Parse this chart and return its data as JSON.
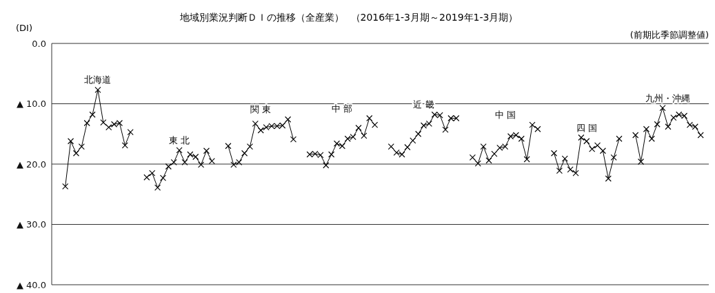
{
  "chart_data": {
    "type": "line",
    "title": "地域別業況判断ＤＩの推移（全産業）",
    "subtitle": "（2016年1-3月期～2019年1-3月期）",
    "ylabel": "(DI)",
    "annotations": [
      "(前期比季節調整値)"
    ],
    "categories": [
      null,
      null,
      null,
      null,
      null,
      null,
      null,
      null,
      null,
      null,
      null,
      null,
      null,
      null,
      null,
      null,
      null,
      null,
      null,
      null,
      null,
      null,
      null,
      null,
      null,
      null,
      null,
      null,
      null,
      null,
      null,
      null,
      null,
      null,
      null,
      null,
      null,
      null,
      null,
      null,
      null,
      null,
      null,
      null,
      null,
      null,
      null,
      null,
      null,
      null,
      null,
      null,
      null,
      null,
      null,
      null,
      null,
      null,
      null,
      null,
      null,
      null,
      null,
      null,
      null,
      null,
      null,
      null,
      null,
      null,
      null,
      null,
      null,
      null,
      null,
      null,
      null,
      null,
      null,
      null,
      null,
      null,
      null,
      null,
      null,
      null,
      null,
      null,
      null,
      null,
      null,
      null,
      null,
      null,
      null,
      null,
      null,
      null,
      null,
      null,
      null,
      null,
      null,
      null,
      null,
      null,
      null,
      null,
      null,
      null,
      null,
      null,
      null,
      null,
      null,
      null,
      null,
      null,
      null,
      null,
      null
    ],
    "series": [
      {
        "name": "北海道",
        "color": "#000000",
        "values": [
          null,
          null,
          -23.7,
          -16.2,
          -18.2,
          -17.1,
          -13.2,
          -11.8,
          -7.7,
          -13.1,
          -13.9,
          -13.4,
          -13.2,
          -16.9,
          -14.7,
          null,
          null,
          null,
          null,
          null,
          null,
          null,
          null,
          null,
          null,
          null,
          null,
          null,
          null,
          null,
          null,
          null,
          null,
          null,
          null,
          null,
          null,
          null,
          null,
          null,
          null,
          null,
          null,
          null,
          null,
          null,
          null,
          null,
          null,
          null,
          null,
          null,
          null,
          null,
          null,
          null,
          null,
          null,
          null,
          null,
          null,
          null,
          null,
          null,
          null,
          null,
          null,
          null,
          null,
          null,
          null,
          null,
          null,
          null,
          null,
          null,
          null,
          null,
          null,
          null,
          null,
          null,
          null,
          null,
          null,
          null,
          null,
          null,
          null,
          null,
          null,
          null,
          null,
          null,
          null,
          null,
          null,
          null,
          null,
          null,
          null,
          null,
          null,
          null,
          null,
          null,
          null,
          null,
          null,
          null,
          null,
          null,
          null,
          null,
          null,
          null,
          null,
          null,
          null,
          null,
          null
        ]
      },
      {
        "name": "東 北",
        "color": "#000000",
        "values": [
          null,
          null,
          null,
          null,
          null,
          null,
          null,
          null,
          null,
          null,
          null,
          null,
          null,
          null,
          null,
          null,
          null,
          -22.2,
          -21.5,
          -23.9,
          -22.3,
          -20.4,
          -19.7,
          -17.7,
          -19.7,
          -18.4,
          -18.8,
          -20.1,
          -17.8,
          -19.5,
          null,
          null,
          null,
          null,
          null,
          null,
          null,
          null,
          null,
          null,
          null,
          null,
          null,
          null,
          null,
          null,
          null,
          null,
          null,
          null,
          null,
          null,
          null,
          null,
          null,
          null,
          null,
          null,
          null,
          null,
          null,
          null,
          null,
          null,
          null,
          null,
          null,
          null,
          null,
          null,
          null,
          null,
          null,
          null,
          null,
          null,
          null,
          null,
          null,
          null,
          null,
          null,
          null,
          null,
          null,
          null,
          null,
          null,
          null,
          null,
          null,
          null,
          null,
          null,
          null,
          null,
          null,
          null,
          null,
          null,
          null,
          null,
          null,
          null,
          null,
          null,
          null,
          null,
          null,
          null,
          null,
          null,
          null,
          null,
          null,
          null,
          null,
          null,
          null,
          null,
          null
        ]
      },
      {
        "name": "関 東",
        "color": "#000000",
        "values": [
          null,
          null,
          null,
          null,
          null,
          null,
          null,
          null,
          null,
          null,
          null,
          null,
          null,
          null,
          null,
          null,
          null,
          null,
          null,
          null,
          null,
          null,
          null,
          null,
          null,
          null,
          null,
          null,
          null,
          null,
          null,
          null,
          -17.0,
          -20.1,
          -19.7,
          -18.2,
          -17.1,
          -13.3,
          -14.4,
          -13.9,
          -13.7,
          -13.7,
          -13.6,
          -12.6,
          -15.9,
          null,
          null,
          null,
          null,
          null,
          null,
          null,
          null,
          null,
          null,
          null,
          null,
          null,
          null,
          null,
          null,
          null,
          null,
          null,
          null,
          null,
          null,
          null,
          null,
          null,
          null,
          null,
          null,
          null,
          null,
          null,
          null,
          null,
          null,
          null,
          null,
          null,
          null,
          null,
          null,
          null,
          null,
          null,
          null,
          null,
          null,
          null,
          null,
          null,
          null,
          null,
          null,
          null,
          null,
          null,
          null,
          null,
          null,
          null,
          null,
          null,
          null,
          null,
          null,
          null,
          null,
          null,
          null,
          null,
          null,
          null,
          null,
          null,
          null,
          null,
          null
        ]
      },
      {
        "name": "中 部",
        "color": "#000000",
        "values": [
          null,
          null,
          null,
          null,
          null,
          null,
          null,
          null,
          null,
          null,
          null,
          null,
          null,
          null,
          null,
          null,
          null,
          null,
          null,
          null,
          null,
          null,
          null,
          null,
          null,
          null,
          null,
          null,
          null,
          null,
          null,
          null,
          null,
          null,
          null,
          null,
          null,
          null,
          null,
          null,
          null,
          null,
          null,
          null,
          null,
          null,
          null,
          -18.4,
          -18.3,
          -18.5,
          -20.2,
          -18.4,
          -16.6,
          -17.0,
          -15.8,
          -15.5,
          -14.0,
          -15.3,
          -12.4,
          -13.5,
          null,
          null,
          null,
          null,
          null,
          null,
          null,
          null,
          null,
          null,
          null,
          null,
          null,
          null,
          null,
          null,
          null,
          null,
          null,
          null,
          null,
          null,
          null,
          null,
          null,
          null,
          null,
          null,
          null,
          null,
          null,
          null,
          null,
          null,
          null,
          null,
          null,
          null,
          null,
          null,
          null,
          null,
          null,
          null,
          null,
          null,
          null,
          null,
          null,
          null,
          null,
          null,
          null,
          null,
          null,
          null,
          null,
          null,
          null,
          null,
          null
        ]
      },
      {
        "name": "近 畿",
        "color": "#000000",
        "values": [
          null,
          null,
          null,
          null,
          null,
          null,
          null,
          null,
          null,
          null,
          null,
          null,
          null,
          null,
          null,
          null,
          null,
          null,
          null,
          null,
          null,
          null,
          null,
          null,
          null,
          null,
          null,
          null,
          null,
          null,
          null,
          null,
          null,
          null,
          null,
          null,
          null,
          null,
          null,
          null,
          null,
          null,
          null,
          null,
          null,
          null,
          null,
          null,
          null,
          null,
          null,
          null,
          null,
          null,
          null,
          null,
          null,
          null,
          null,
          null,
          null,
          null,
          -17.1,
          -18.1,
          -18.4,
          -17.2,
          -16.1,
          -15.0,
          -13.6,
          -13.3,
          -11.8,
          -11.9,
          -14.3,
          -12.4,
          -12.4,
          null,
          null,
          null,
          null,
          null,
          null,
          null,
          null,
          null,
          null,
          null,
          null,
          null,
          null,
          null,
          null,
          null,
          null,
          null,
          null,
          null,
          null,
          null,
          null,
          null,
          null,
          null,
          null,
          null,
          null,
          null,
          null,
          null,
          null,
          null,
          null,
          null,
          null,
          null,
          null,
          null,
          null,
          null,
          null,
          null,
          null
        ]
      },
      {
        "name": "中 国",
        "color": "#000000",
        "values": [
          null,
          null,
          null,
          null,
          null,
          null,
          null,
          null,
          null,
          null,
          null,
          null,
          null,
          null,
          null,
          null,
          null,
          null,
          null,
          null,
          null,
          null,
          null,
          null,
          null,
          null,
          null,
          null,
          null,
          null,
          null,
          null,
          null,
          null,
          null,
          null,
          null,
          null,
          null,
          null,
          null,
          null,
          null,
          null,
          null,
          null,
          null,
          null,
          null,
          null,
          null,
          null,
          null,
          null,
          null,
          null,
          null,
          null,
          null,
          null,
          null,
          null,
          null,
          null,
          null,
          null,
          null,
          null,
          null,
          null,
          null,
          null,
          null,
          null,
          null,
          null,
          null,
          -18.9,
          -19.9,
          -17.1,
          -19.4,
          -18.3,
          -17.3,
          -17.1,
          -15.4,
          -15.2,
          -15.8,
          -19.2,
          -13.5,
          -14.2,
          null,
          null,
          null,
          null,
          null,
          null,
          null,
          null,
          null,
          null,
          null,
          null,
          null,
          null,
          null,
          null,
          null,
          null,
          null,
          null,
          null,
          null,
          null,
          null,
          null,
          null,
          null,
          null,
          null,
          null,
          null
        ]
      },
      {
        "name": "四 国",
        "color": "#000000",
        "values": [
          null,
          null,
          null,
          null,
          null,
          null,
          null,
          null,
          null,
          null,
          null,
          null,
          null,
          null,
          null,
          null,
          null,
          null,
          null,
          null,
          null,
          null,
          null,
          null,
          null,
          null,
          null,
          null,
          null,
          null,
          null,
          null,
          null,
          null,
          null,
          null,
          null,
          null,
          null,
          null,
          null,
          null,
          null,
          null,
          null,
          null,
          null,
          null,
          null,
          null,
          null,
          null,
          null,
          null,
          null,
          null,
          null,
          null,
          null,
          null,
          null,
          null,
          null,
          null,
          null,
          null,
          null,
          null,
          null,
          null,
          null,
          null,
          null,
          null,
          null,
          null,
          null,
          null,
          null,
          null,
          null,
          null,
          null,
          null,
          null,
          null,
          null,
          null,
          null,
          null,
          null,
          null,
          -18.2,
          -21.1,
          -19.1,
          -20.9,
          -21.5,
          -15.6,
          -16.2,
          -17.5,
          -16.9,
          -17.8,
          -22.4,
          -18.9,
          -15.8,
          null,
          null,
          null,
          null,
          null,
          null,
          null,
          null,
          null,
          null,
          null,
          null,
          null,
          null,
          null,
          null
        ]
      },
      {
        "name": "九州・沖縄",
        "color": "#000000",
        "values": [
          null,
          null,
          null,
          null,
          null,
          null,
          null,
          null,
          null,
          null,
          null,
          null,
          null,
          null,
          null,
          null,
          null,
          null,
          null,
          null,
          null,
          null,
          null,
          null,
          null,
          null,
          null,
          null,
          null,
          null,
          null,
          null,
          null,
          null,
          null,
          null,
          null,
          null,
          null,
          null,
          null,
          null,
          null,
          null,
          null,
          null,
          null,
          null,
          null,
          null,
          null,
          null,
          null,
          null,
          null,
          null,
          null,
          null,
          null,
          null,
          null,
          null,
          null,
          null,
          null,
          null,
          null,
          null,
          null,
          null,
          null,
          null,
          null,
          null,
          null,
          null,
          null,
          null,
          null,
          null,
          null,
          null,
          null,
          null,
          null,
          null,
          null,
          null,
          null,
          null,
          null,
          null,
          null,
          null,
          null,
          null,
          null,
          null,
          null,
          null,
          null,
          null,
          null,
          null,
          null,
          null,
          null,
          -15.2,
          -19.6,
          -14.2,
          -15.8,
          -13.4,
          -10.7,
          -13.8,
          -12.3,
          -11.8,
          -12.0,
          -13.5,
          -13.8,
          -15.2,
          null
        ]
      }
    ],
    "ylim": [
      -40,
      0
    ],
    "yticks": [
      {
        "value": 0,
        "label": "0.0"
      },
      {
        "value": -10,
        "label": "▲ 10.0"
      },
      {
        "value": -20,
        "label": "▲ 20.0"
      },
      {
        "value": -30,
        "label": "▲ 30.0"
      },
      {
        "value": -40,
        "label": "▲ 40.0"
      }
    ],
    "grid": "y",
    "tick_labels": "y",
    "marker": "cross",
    "line_style": "solid",
    "legend": false
  }
}
